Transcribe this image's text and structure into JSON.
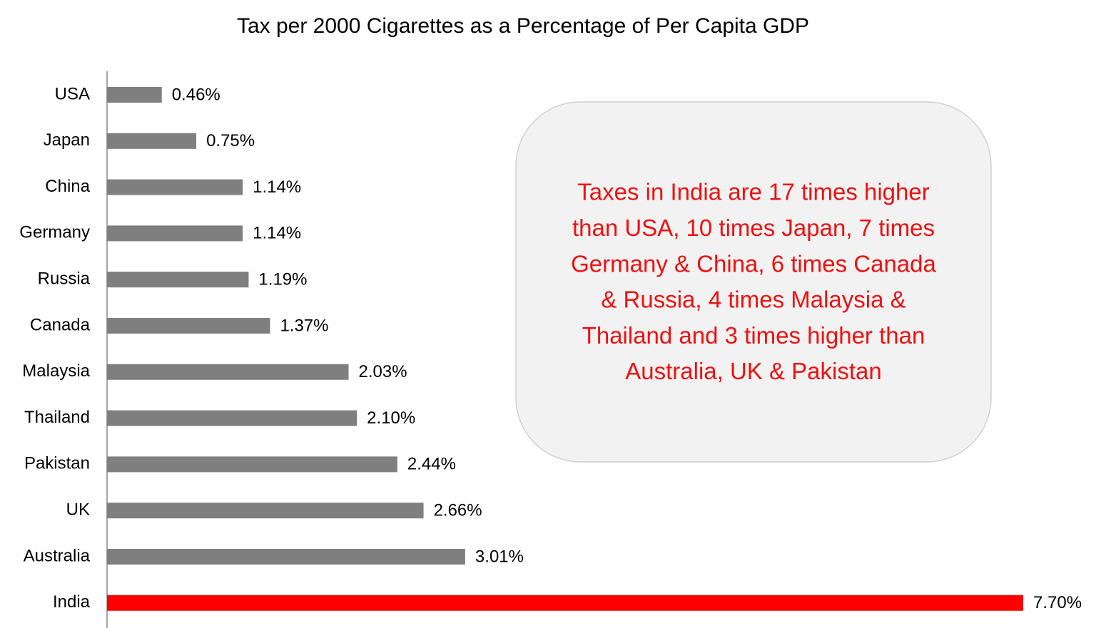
{
  "chart_data": {
    "type": "barh",
    "title": "Tax per 2000 Cigarettes as a Percentage of Per Capita GDP",
    "categories": [
      "USA",
      "Japan",
      "China",
      "Germany",
      "Russia",
      "Canada",
      "Malaysia",
      "Thailand",
      "Pakistan",
      "UK",
      "Australia",
      "India"
    ],
    "values": [
      0.46,
      0.75,
      1.14,
      1.14,
      1.19,
      1.37,
      2.03,
      2.1,
      2.44,
      2.66,
      3.01,
      7.7
    ],
    "value_labels": [
      "0.46%",
      "0.75%",
      "1.14%",
      "1.14%",
      "1.19%",
      "1.37%",
      "2.03%",
      "2.10%",
      "2.44%",
      "2.66%",
      "3.01%",
      "7.70%"
    ],
    "colors": [
      "#7f7f7f",
      "#7f7f7f",
      "#7f7f7f",
      "#7f7f7f",
      "#7f7f7f",
      "#7f7f7f",
      "#7f7f7f",
      "#7f7f7f",
      "#7f7f7f",
      "#7f7f7f",
      "#7f7f7f",
      "#ff0000"
    ],
    "annotation": [
      "Taxes in India are 17 times higher",
      "than USA, 10 times Japan, 7 times",
      "Germany & China, 6 times Canada",
      "& Russia, 4 times Malaysia &",
      "Thailand and 3 times higher than",
      "Australia, UK & Pakistan"
    ]
  }
}
